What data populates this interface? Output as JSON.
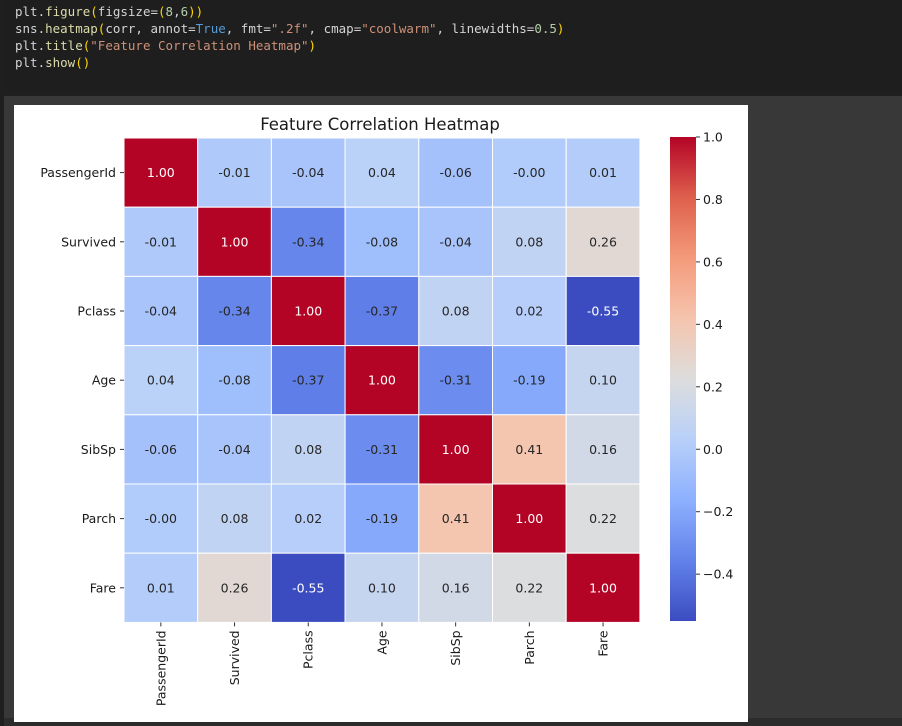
{
  "code_lines": [
    [
      {
        "t": "plt",
        "c": "obj"
      },
      {
        "t": ".",
        "c": "obj"
      },
      {
        "t": "figure",
        "c": "fn"
      },
      {
        "t": "(",
        "c": "par"
      },
      {
        "t": "figsize",
        "c": "obj"
      },
      {
        "t": "=",
        "c": "obj"
      },
      {
        "t": "(",
        "c": "par"
      },
      {
        "t": "8",
        "c": "num"
      },
      {
        "t": ",",
        "c": "obj"
      },
      {
        "t": "6",
        "c": "num"
      },
      {
        "t": ")",
        "c": "par"
      },
      {
        "t": ")",
        "c": "par"
      }
    ],
    [
      {
        "t": "sns",
        "c": "obj"
      },
      {
        "t": ".",
        "c": "obj"
      },
      {
        "t": "heatmap",
        "c": "fn"
      },
      {
        "t": "(",
        "c": "par"
      },
      {
        "t": "corr, annot=",
        "c": "obj"
      },
      {
        "t": "True",
        "c": "kw"
      },
      {
        "t": ", fmt=",
        "c": "obj"
      },
      {
        "t": "\".2f\"",
        "c": "str"
      },
      {
        "t": ", cmap=",
        "c": "obj"
      },
      {
        "t": "\"coolwarm\"",
        "c": "str"
      },
      {
        "t": ", linewidths=",
        "c": "obj"
      },
      {
        "t": "0.5",
        "c": "num"
      },
      {
        "t": ")",
        "c": "par"
      }
    ],
    [
      {
        "t": "plt",
        "c": "obj"
      },
      {
        "t": ".",
        "c": "obj"
      },
      {
        "t": "title",
        "c": "fn"
      },
      {
        "t": "(",
        "c": "par"
      },
      {
        "t": "\"Feature Correlation Heatmap\"",
        "c": "str"
      },
      {
        "t": ")",
        "c": "par"
      }
    ],
    [
      {
        "t": "plt",
        "c": "obj"
      },
      {
        "t": ".",
        "c": "obj"
      },
      {
        "t": "show",
        "c": "fn"
      },
      {
        "t": "()",
        "c": "par"
      }
    ]
  ],
  "chart_data": {
    "type": "heatmap",
    "title": "Feature Correlation Heatmap",
    "rows": [
      "PassengerId",
      "Survived",
      "Pclass",
      "Age",
      "SibSp",
      "Parch",
      "Fare"
    ],
    "columns": [
      "PassengerId",
      "Survived",
      "Pclass",
      "Age",
      "SibSp",
      "Parch",
      "Fare"
    ],
    "values": [
      [
        1.0,
        -0.01,
        -0.04,
        0.04,
        -0.06,
        -0.0,
        0.01
      ],
      [
        -0.01,
        1.0,
        -0.34,
        -0.08,
        -0.04,
        0.08,
        0.26
      ],
      [
        -0.04,
        -0.34,
        1.0,
        -0.37,
        0.08,
        0.02,
        -0.55
      ],
      [
        0.04,
        -0.08,
        -0.37,
        1.0,
        -0.31,
        -0.19,
        0.1
      ],
      [
        -0.06,
        -0.04,
        0.08,
        -0.31,
        1.0,
        0.41,
        0.16
      ],
      [
        -0.0,
        0.08,
        0.02,
        -0.19,
        0.41,
        1.0,
        0.22
      ],
      [
        0.01,
        0.26,
        -0.55,
        0.1,
        0.16,
        0.22,
        1.0
      ]
    ],
    "annotations": [
      [
        "1.00",
        "-0.01",
        "-0.04",
        "0.04",
        "-0.06",
        "-0.00",
        "0.01"
      ],
      [
        "-0.01",
        "1.00",
        "-0.34",
        "-0.08",
        "-0.04",
        "0.08",
        "0.26"
      ],
      [
        "-0.04",
        "-0.34",
        "1.00",
        "-0.37",
        "0.08",
        "0.02",
        "-0.55"
      ],
      [
        "0.04",
        "-0.08",
        "-0.37",
        "1.00",
        "-0.31",
        "-0.19",
        "0.10"
      ],
      [
        "-0.06",
        "-0.04",
        "0.08",
        "-0.31",
        "1.00",
        "0.41",
        "0.16"
      ],
      [
        "-0.00",
        "0.08",
        "0.02",
        "-0.19",
        "0.41",
        "1.00",
        "0.22"
      ],
      [
        "0.01",
        "0.26",
        "-0.55",
        "0.10",
        "0.16",
        "0.22",
        "1.00"
      ]
    ],
    "cmap": "coolwarm",
    "colorbar": {
      "min": -0.55,
      "max": 1.0,
      "ticks": [
        1.0,
        0.8,
        0.6,
        0.4,
        0.2,
        0.0,
        -0.2,
        -0.4
      ],
      "tick_labels": [
        "1.0",
        "0.8",
        "0.6",
        "0.4",
        "0.2",
        "0.0",
        "−0.2",
        "−0.4"
      ],
      "placement": "right"
    },
    "grid": false
  }
}
